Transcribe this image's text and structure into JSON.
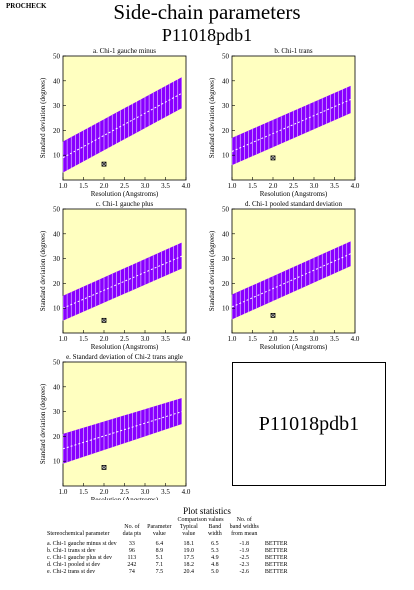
{
  "header": {
    "procheck": "PROCHECK",
    "title": "Side-chain parameters",
    "subtitle": "P11018pdb1"
  },
  "id_box": "P11018pdb1",
  "chart_data": [
    {
      "type": "area",
      "title": "a. Chi-1 gauche minus",
      "xlabel": "Resolution (Angstroms)",
      "ylabel": "Standard deviation (degrees)",
      "xlim": [
        1.0,
        4.0
      ],
      "ylim": [
        0,
        50
      ],
      "xticks": [
        "1.0",
        "1.5",
        "2.0",
        "2.5",
        "3.0",
        "3.5",
        "4.0"
      ],
      "yticks": [
        "10",
        "20",
        "30",
        "40",
        "50"
      ],
      "band": {
        "x": [
          1.0,
          3.9
        ],
        "mean": [
          9.0,
          35.0
        ],
        "lower": [
          3.0,
          29.0
        ],
        "upper": [
          15.5,
          41.5
        ]
      },
      "point": {
        "x": 2.0,
        "y": 6.4
      }
    },
    {
      "type": "area",
      "title": "b. Chi-1 trans",
      "xlabel": "Resolution (Angstroms)",
      "ylabel": "Standard deviation (degrees)",
      "xlim": [
        1.0,
        4.0
      ],
      "ylim": [
        0,
        50
      ],
      "xticks": [
        "1.0",
        "1.5",
        "2.0",
        "2.5",
        "3.0",
        "3.5",
        "4.0"
      ],
      "yticks": [
        "10",
        "20",
        "30",
        "40",
        "50"
      ],
      "band": {
        "x": [
          1.0,
          3.9
        ],
        "mean": [
          11.5,
          32.5
        ],
        "lower": [
          6.0,
          27.0
        ],
        "upper": [
          17.0,
          38.0
        ]
      },
      "point": {
        "x": 2.0,
        "y": 8.9
      }
    },
    {
      "type": "area",
      "title": "c. Chi-1 gauche plus",
      "xlabel": "Resolution (Angstroms)",
      "ylabel": "Standard deviation (degrees)",
      "xlim": [
        1.0,
        4.0
      ],
      "ylim": [
        0,
        50
      ],
      "xticks": [
        "1.0",
        "1.5",
        "2.0",
        "2.5",
        "3.0",
        "3.5",
        "4.0"
      ],
      "yticks": [
        "10",
        "20",
        "30",
        "40",
        "50"
      ],
      "band": {
        "x": [
          1.0,
          3.9
        ],
        "mean": [
          10.0,
          31.0
        ],
        "lower": [
          5.0,
          26.0
        ],
        "upper": [
          15.0,
          36.5
        ]
      },
      "point": {
        "x": 2.0,
        "y": 5.1
      }
    },
    {
      "type": "area",
      "title": "d. Chi-1 pooled standard deviation",
      "xlabel": "Resolution (Angstroms)",
      "ylabel": "Standard deviation (degrees)",
      "xlim": [
        1.0,
        4.0
      ],
      "ylim": [
        0,
        50
      ],
      "xticks": [
        "1.0",
        "1.5",
        "2.0",
        "2.5",
        "3.0",
        "3.5",
        "4.0"
      ],
      "yticks": [
        "10",
        "20",
        "30",
        "40",
        "50"
      ],
      "band": {
        "x": [
          1.0,
          3.9
        ],
        "mean": [
          10.5,
          32.0
        ],
        "lower": [
          5.5,
          27.0
        ],
        "upper": [
          15.5,
          37.0
        ]
      },
      "point": {
        "x": 2.0,
        "y": 7.1
      }
    },
    {
      "type": "area",
      "title": "e. Standard deviation of Chi-2 trans angle",
      "xlabel": "Resolution (Angstroms)",
      "ylabel": "Standard deviation (degrees)",
      "xlim": [
        1.0,
        4.0
      ],
      "ylim": [
        0,
        50
      ],
      "xticks": [
        "1.0",
        "1.5",
        "2.0",
        "2.5",
        "3.0",
        "3.5",
        "4.0"
      ],
      "yticks": [
        "10",
        "20",
        "30",
        "40",
        "50"
      ],
      "band": {
        "x": [
          1.0,
          3.9
        ],
        "mean": [
          15.0,
          30.0
        ],
        "lower": [
          9.0,
          25.0
        ],
        "upper": [
          21.0,
          35.5
        ]
      },
      "point": {
        "x": 2.0,
        "y": 7.5
      }
    }
  ],
  "stats": {
    "title": "Plot statistics",
    "header": {
      "line1": {
        "comparison": "Comparison values",
        "bandwidths": "No. of"
      },
      "line2": {
        "datapts": "No. of",
        "param": "Parameter",
        "typical": "Typical",
        "band": "Band",
        "bandwidths": "band widths"
      },
      "line3": {
        "name": "Stereochemical parameter",
        "datapts": "data pts",
        "param": "value",
        "typical": "value",
        "band": "width",
        "bandwidths": "from mean"
      }
    },
    "rows": [
      {
        "name": "a. Chi-1 gauche minus st dev",
        "datapts": "33",
        "param": "6.4",
        "typical": "18.1",
        "band": "6.5",
        "bw": "-1.8",
        "verdict": "BETTER"
      },
      {
        "name": "b. Chi-1 trans st dev",
        "datapts": "96",
        "param": "8.9",
        "typical": "19.0",
        "band": "5.3",
        "bw": "-1.9",
        "verdict": "BETTER"
      },
      {
        "name": "c. Chi-1 gauche plus st dev",
        "datapts": "113",
        "param": "5.1",
        "typical": "17.5",
        "band": "4.9",
        "bw": "-2.5",
        "verdict": "BETTER"
      },
      {
        "name": "d. Chi-1 pooled st dev",
        "datapts": "242",
        "param": "7.1",
        "typical": "18.2",
        "band": "4.8",
        "bw": "-2.3",
        "verdict": "BETTER"
      },
      {
        "name": "e. Chi-2 trans st dev",
        "datapts": "74",
        "param": "7.5",
        "typical": "20.4",
        "band": "5.0",
        "bw": "-2.6",
        "verdict": "BETTER"
      }
    ]
  }
}
